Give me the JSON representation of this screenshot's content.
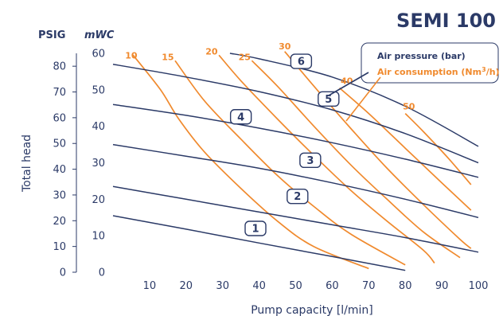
{
  "colors": {
    "pressure": "#2b3a67",
    "consumption": "#f08a2e",
    "text": "#2b3a67",
    "background": "#ffffff"
  },
  "chart_data": {
    "type": "line",
    "title": "SEMI 100",
    "xlabel": "Pump capacity [l/min]",
    "ylabel": "Total head",
    "y_units": [
      "PSIG",
      "mWC"
    ],
    "xlim": [
      0,
      100
    ],
    "ylim_mwc": [
      0,
      60
    ],
    "ylim_psig": [
      0,
      85
    ],
    "x_ticks": [
      10,
      20,
      30,
      40,
      50,
      60,
      70,
      80,
      90,
      100
    ],
    "y_ticks_mwc": [
      0,
      10,
      20,
      30,
      40,
      50,
      60
    ],
    "y_ticks_psig": [
      0,
      10,
      20,
      30,
      40,
      50,
      60,
      70,
      80
    ],
    "grid": false,
    "legend": {
      "position": "top-right",
      "pressure_label": "Air pressure (bar)",
      "consumption_label_main": "Air consumption (Nm",
      "consumption_label_sup": "3",
      "consumption_label_end": "/h)"
    },
    "pressure_series": [
      {
        "label": "1",
        "label_at": [
          39,
          12.0
        ],
        "points": [
          [
            0,
            15.5
          ],
          [
            20,
            11.8
          ],
          [
            40,
            8.0
          ],
          [
            60,
            4.3
          ],
          [
            80,
            0.5
          ]
        ]
      },
      {
        "label": "2",
        "label_at": [
          50.5,
          20.8
        ],
        "points": [
          [
            0,
            23.5
          ],
          [
            20,
            20.0
          ],
          [
            40,
            16.5
          ],
          [
            60,
            13.0
          ],
          [
            80,
            9.5
          ],
          [
            100,
            5.5
          ]
        ]
      },
      {
        "label": "3",
        "label_at": [
          54,
          30.7
        ],
        "points": [
          [
            0,
            35.0
          ],
          [
            20,
            31.8
          ],
          [
            40,
            28.5
          ],
          [
            60,
            24.5
          ],
          [
            80,
            20.0
          ],
          [
            100,
            15.0
          ]
        ]
      },
      {
        "label": "4",
        "label_at": [
          35,
          42.6
        ],
        "points": [
          [
            0,
            46.0
          ],
          [
            20,
            43.0
          ],
          [
            40,
            39.5
          ],
          [
            60,
            35.5
          ],
          [
            80,
            31.0
          ],
          [
            100,
            26.0
          ]
        ]
      },
      {
        "label": "5",
        "label_at": [
          59,
          47.5
        ],
        "points": [
          [
            0,
            57.0
          ],
          [
            20,
            53.5
          ],
          [
            40,
            49.5
          ],
          [
            60,
            44.5
          ],
          [
            80,
            38.0
          ],
          [
            100,
            30.0
          ]
        ]
      },
      {
        "label": "6",
        "label_at": [
          51.5,
          57.8
        ],
        "points": [
          [
            32,
            60.0
          ],
          [
            40,
            58.5
          ],
          [
            60,
            53.5
          ],
          [
            80,
            45.5
          ],
          [
            100,
            34.5
          ]
        ]
      }
    ],
    "consumption_series": [
      {
        "label": "10",
        "label_at": [
          5,
          59.5
        ],
        "points": [
          [
            5.5,
            59.5
          ],
          [
            13,
            50.0
          ],
          [
            18,
            42.0
          ],
          [
            25,
            33.0
          ],
          [
            35,
            23.0
          ],
          [
            45,
            14.0
          ],
          [
            55,
            7.0
          ],
          [
            70,
            1.0
          ]
        ]
      },
      {
        "label": "15",
        "label_at": [
          15,
          59.0
        ],
        "points": [
          [
            17,
            58.0
          ],
          [
            25,
            47.0
          ],
          [
            35,
            36.5
          ],
          [
            45,
            26.5
          ],
          [
            55,
            18.0
          ],
          [
            65,
            10.5
          ],
          [
            80,
            2.0
          ]
        ]
      },
      {
        "label": "20",
        "label_at": [
          27,
          60.5
        ],
        "points": [
          [
            29,
            59.5
          ],
          [
            35,
            52.5
          ],
          [
            45,
            42.0
          ],
          [
            55,
            32.0
          ],
          [
            65,
            22.5
          ],
          [
            75,
            14.0
          ],
          [
            85,
            6.0
          ],
          [
            88,
            2.5
          ]
        ]
      },
      {
        "label": "25",
        "label_at": [
          36,
          59.0
        ],
        "points": [
          [
            38,
            58.0
          ],
          [
            45,
            51.0
          ],
          [
            55,
            40.0
          ],
          [
            65,
            29.5
          ],
          [
            75,
            20.0
          ],
          [
            85,
            11.0
          ],
          [
            95,
            4.0
          ]
        ]
      },
      {
        "label": "30",
        "label_at": [
          47,
          62.0
        ],
        "points": [
          [
            47,
            60.5
          ],
          [
            55,
            51.0
          ],
          [
            65,
            39.5
          ],
          [
            75,
            28.5
          ],
          [
            85,
            18.5
          ],
          [
            95,
            9.0
          ],
          [
            98,
            6.5
          ]
        ]
      },
      {
        "label": "40",
        "label_at": [
          64,
          52.5
        ],
        "points": [
          [
            62,
            50.5
          ],
          [
            70,
            43.5
          ],
          [
            80,
            34.0
          ],
          [
            90,
            24.5
          ],
          [
            98,
            17.0
          ]
        ]
      },
      {
        "label": "50",
        "label_at": [
          81,
          45.5
        ],
        "points": [
          [
            80,
            43.5
          ],
          [
            85,
            38.5
          ],
          [
            92,
            31.0
          ],
          [
            98,
            24.0
          ]
        ]
      }
    ]
  }
}
